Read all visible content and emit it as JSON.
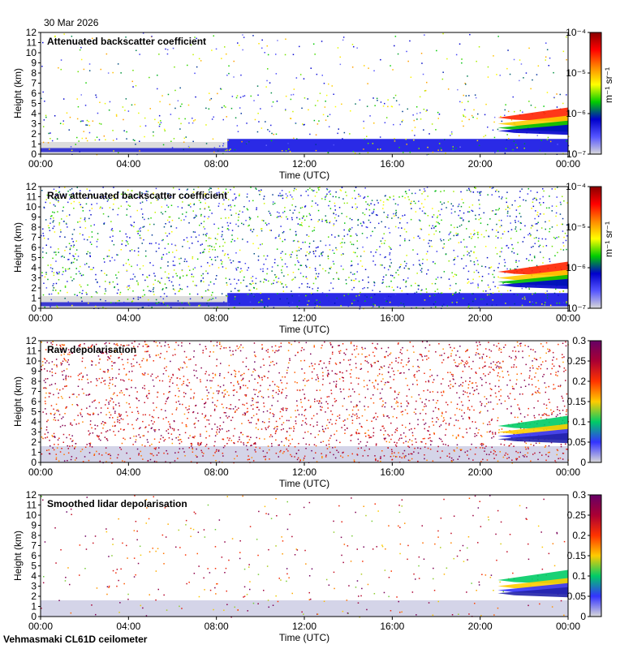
{
  "date_label": "30 Mar 2026",
  "footer_label": "Vehmasmaki CL61D ceilometer",
  "colors": {
    "ramp": [
      "#d9d9d9",
      "#5555ff",
      "#0000cc",
      "#00cc00",
      "#ffff00",
      "#ff8800",
      "#ff0000",
      "#880000"
    ],
    "depol_ramp": [
      "#d9d9d9",
      "#3333ff",
      "#00cc66",
      "#ffcc00",
      "#ff3300",
      "#aa0033",
      "#660066"
    ]
  },
  "chart_data": [
    {
      "type": "heatmap",
      "title": "Attenuated backscatter coefficient",
      "xlabel": "Time (UTC)",
      "ylabel": "Height (km)",
      "x_ticks": [
        "00:00",
        "04:00",
        "08:00",
        "12:00",
        "16:00",
        "20:00",
        "00:00"
      ],
      "y_ticks": [
        "0",
        "1",
        "2",
        "3",
        "4",
        "5",
        "6",
        "7",
        "8",
        "9",
        "10",
        "11",
        "12"
      ],
      "ylim": [
        0,
        12
      ],
      "colorbar": {
        "scale": "log",
        "range": [
          1e-07,
          0.0001
        ],
        "ticks": [
          "10⁻⁷",
          "10⁻⁶",
          "10⁻⁵",
          "10⁻⁴"
        ],
        "unit": "m⁻¹ sr⁻¹"
      }
    },
    {
      "type": "heatmap",
      "title": "Raw attenuated backscatter coefficient",
      "xlabel": "Time (UTC)",
      "ylabel": "Height (km)",
      "x_ticks": [
        "00:00",
        "04:00",
        "08:00",
        "12:00",
        "16:00",
        "20:00",
        "00:00"
      ],
      "y_ticks": [
        "0",
        "1",
        "2",
        "3",
        "4",
        "5",
        "6",
        "7",
        "8",
        "9",
        "10",
        "11",
        "12"
      ],
      "ylim": [
        0,
        12
      ],
      "colorbar": {
        "scale": "log",
        "range": [
          1e-07,
          0.0001
        ],
        "ticks": [
          "10⁻⁷",
          "10⁻⁶",
          "10⁻⁵",
          "10⁻⁴"
        ],
        "unit": "m⁻¹ sr⁻¹"
      }
    },
    {
      "type": "heatmap",
      "title": "Raw depolarisation",
      "xlabel": "Time (UTC)",
      "ylabel": "Height (km)",
      "x_ticks": [
        "00:00",
        "04:00",
        "08:00",
        "12:00",
        "16:00",
        "20:00",
        "00:00"
      ],
      "y_ticks": [
        "0",
        "1",
        "2",
        "3",
        "4",
        "5",
        "6",
        "7",
        "8",
        "9",
        "10",
        "11",
        "12"
      ],
      "ylim": [
        0,
        12
      ],
      "colorbar": {
        "scale": "linear",
        "range": [
          0,
          0.3
        ],
        "ticks": [
          "0",
          "0.05",
          "0.1",
          "0.15",
          "0.2",
          "0.25",
          "0.3"
        ],
        "unit": ""
      }
    },
    {
      "type": "heatmap",
      "title": "Smoothed lidar depolarisation",
      "xlabel": "Time (UTC)",
      "ylabel": "Height (km)",
      "x_ticks": [
        "00:00",
        "04:00",
        "08:00",
        "12:00",
        "16:00",
        "20:00",
        "00:00"
      ],
      "y_ticks": [
        "0",
        "1",
        "2",
        "3",
        "4",
        "5",
        "6",
        "7",
        "8",
        "9",
        "10",
        "11",
        "12"
      ],
      "ylim": [
        0,
        12
      ],
      "colorbar": {
        "scale": "linear",
        "range": [
          0,
          0.3
        ],
        "ticks": [
          "0",
          "0.05",
          "0.1",
          "0.15",
          "0.2",
          "0.25",
          "0.3"
        ],
        "unit": ""
      }
    }
  ]
}
